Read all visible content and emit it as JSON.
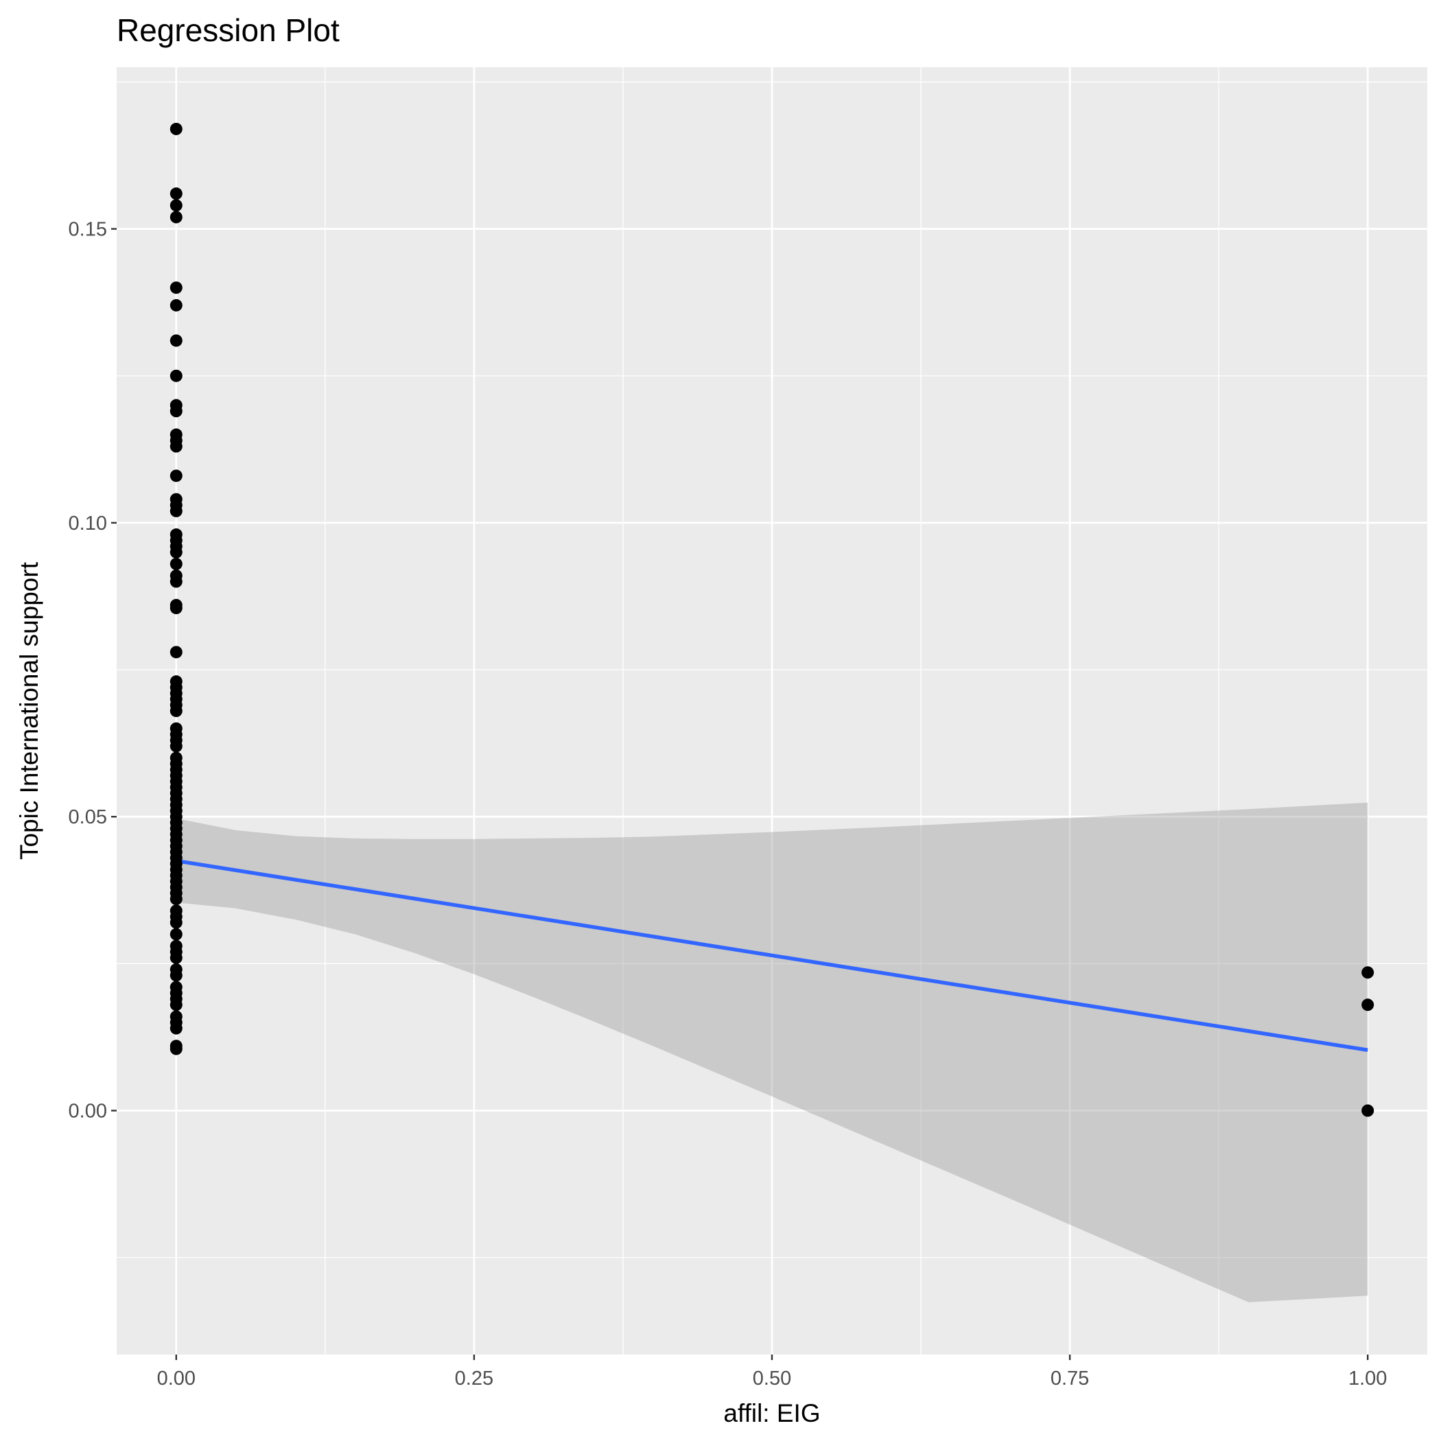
{
  "chart_data": {
    "type": "scatter",
    "title": "Regression Plot",
    "xlabel": "affil: EIG",
    "ylabel": "Topic International support",
    "xlim": [
      -0.05,
      1.05
    ],
    "ylim": [
      -0.0415,
      0.1775
    ],
    "x_ticks": [
      0.0,
      0.25,
      0.5,
      0.75,
      1.0
    ],
    "x_tick_labels": [
      "0.00",
      "0.25",
      "0.50",
      "0.75",
      "1.00"
    ],
    "y_ticks": [
      0.0,
      0.05,
      0.1,
      0.15
    ],
    "y_tick_labels": [
      "0.00",
      "0.05",
      "0.10",
      "0.15"
    ],
    "grid": true,
    "colors": {
      "panel": "#ebebeb",
      "grid": "#ffffff",
      "point": "#000000",
      "line": "#3366ff",
      "ribbon": "#999999"
    },
    "points": {
      "x": [
        0,
        0,
        0,
        0,
        0,
        0,
        0,
        0,
        0,
        0,
        0,
        0,
        0,
        0,
        0,
        0,
        0,
        0,
        0,
        0,
        0,
        0,
        0,
        0,
        0,
        0,
        0,
        0,
        0,
        0,
        0,
        0,
        0,
        0,
        0,
        0,
        0,
        0,
        0,
        0,
        0,
        0,
        0,
        0,
        0,
        0,
        0,
        0,
        0,
        0,
        0,
        0,
        0,
        0,
        0,
        0,
        0,
        0,
        0,
        0,
        0,
        0,
        0,
        0,
        0,
        0,
        0,
        0,
        0,
        0,
        0,
        0,
        0,
        0,
        0,
        0,
        0,
        0,
        0,
        0,
        1,
        1,
        1
      ],
      "y": [
        0.167,
        0.156,
        0.154,
        0.152,
        0.14,
        0.137,
        0.131,
        0.125,
        0.12,
        0.119,
        0.115,
        0.114,
        0.113,
        0.108,
        0.104,
        0.103,
        0.102,
        0.098,
        0.097,
        0.096,
        0.095,
        0.093,
        0.091,
        0.09,
        0.086,
        0.0855,
        0.078,
        0.073,
        0.072,
        0.071,
        0.07,
        0.069,
        0.068,
        0.065,
        0.064,
        0.063,
        0.062,
        0.06,
        0.059,
        0.058,
        0.057,
        0.056,
        0.055,
        0.054,
        0.053,
        0.052,
        0.051,
        0.05,
        0.049,
        0.048,
        0.047,
        0.046,
        0.045,
        0.044,
        0.043,
        0.042,
        0.041,
        0.04,
        0.039,
        0.038,
        0.037,
        0.036,
        0.034,
        0.033,
        0.032,
        0.03,
        0.028,
        0.027,
        0.026,
        0.024,
        0.023,
        0.021,
        0.02,
        0.019,
        0.018,
        0.016,
        0.015,
        0.014,
        0.011,
        0.0105,
        0.0235,
        0.018,
        0.0
      ]
    },
    "regression_line": {
      "x": [
        0,
        1
      ],
      "y": [
        0.0425,
        0.0103
      ]
    },
    "confidence_band": {
      "x": [
        0,
        0.05,
        0.1,
        0.15,
        0.2,
        0.25,
        0.3,
        0.35,
        0.4,
        0.5,
        0.6,
        0.7,
        0.8,
        0.9,
        1.0
      ],
      "upper": [
        0.0497,
        0.0477,
        0.0467,
        0.0463,
        0.0462,
        0.0462,
        0.0463,
        0.0464,
        0.0466,
        0.0474,
        0.0483,
        0.0493,
        0.0503,
        0.0513,
        0.0524
      ],
      "lower": [
        0.0354,
        0.0344,
        0.0325,
        0.03,
        0.0268,
        0.0232,
        0.0193,
        0.0152,
        0.011,
        0.0024,
        -0.0063,
        -0.015,
        -0.0238,
        -0.0326,
        -0.0315
      ]
    }
  }
}
